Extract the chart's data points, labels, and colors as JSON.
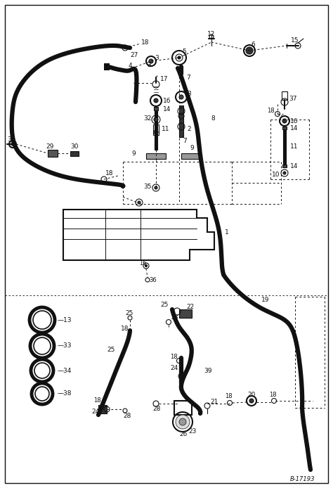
{
  "bg_color": "#ffffff",
  "line_color": "#111111",
  "watermark": "B-17193",
  "fig_width": 4.74,
  "fig_height": 6.94,
  "dpi": 100
}
